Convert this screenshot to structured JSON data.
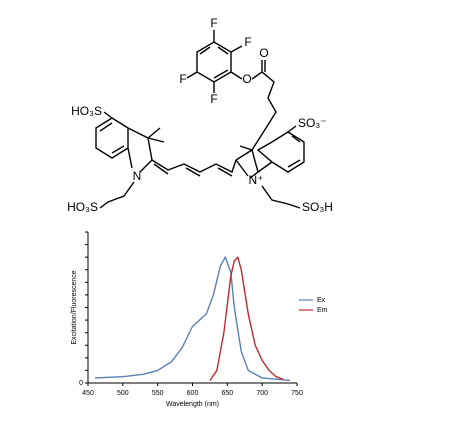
{
  "structure": {
    "atoms": {
      "f1": "F",
      "f2": "F",
      "f3": "F",
      "f4": "F",
      "o1": "O",
      "o2": "O",
      "so3_left": "HO₃S",
      "so3_right": "SO₃⁻",
      "n1": "N",
      "n2": "N⁺",
      "so3h_left": "HO₃S",
      "so3h_right": "SO₃H"
    }
  },
  "chart_data": {
    "type": "line",
    "xlabel": "Wavelength (nm)",
    "ylabel": "Excitation/Fluorescence",
    "xlim": [
      450,
      750
    ],
    "xticks": [
      450,
      500,
      550,
      600,
      650,
      700,
      750
    ],
    "ylim": [
      0,
      1.2
    ],
    "yticks": [
      0
    ],
    "minor_yticks": [
      0.1,
      0.2,
      0.3,
      0.4,
      0.5,
      0.6,
      0.7,
      0.8,
      0.9,
      1.0,
      1.1,
      1.2
    ],
    "legend": "right",
    "series": [
      {
        "name": "Ex",
        "color": "#5b7fb5",
        "x": [
          460,
          500,
          530,
          550,
          570,
          585,
          600,
          610,
          620,
          630,
          640,
          647,
          655,
          660,
          670,
          680,
          700,
          740
        ],
        "values": [
          0.04,
          0.05,
          0.07,
          0.1,
          0.17,
          0.28,
          0.45,
          0.5,
          0.55,
          0.7,
          0.93,
          1.0,
          0.88,
          0.6,
          0.25,
          0.1,
          0.04,
          0.02
        ]
      },
      {
        "name": "Em",
        "color": "#c0282d",
        "x": [
          625,
          635,
          645,
          655,
          660,
          665,
          670,
          680,
          690,
          700,
          710,
          720,
          730
        ],
        "values": [
          0.02,
          0.1,
          0.4,
          0.85,
          0.97,
          1.0,
          0.9,
          0.55,
          0.3,
          0.18,
          0.1,
          0.05,
          0.03
        ]
      }
    ]
  }
}
